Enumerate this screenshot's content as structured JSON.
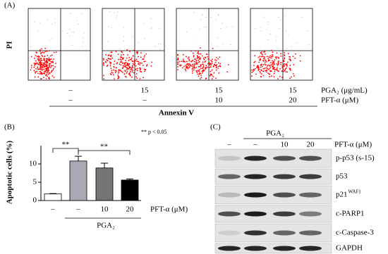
{
  "panel_a": {
    "label": "(A)",
    "y_label": "PI",
    "x_label": "Annexin V",
    "rows": [
      {
        "label": "PGA₂ (μg/mL)",
        "values": [
          "–",
          "15",
          "15",
          "15"
        ]
      },
      {
        "label": "PFT-α (μM)",
        "values": [
          "–",
          "–",
          "10",
          "20"
        ]
      }
    ]
  },
  "chart_data": {
    "type": "bar",
    "panel_label": "(B)",
    "y_label": "Apoptotic cells (%)",
    "categories": [
      "–",
      "–",
      "10",
      "20"
    ],
    "x_label": "PFT-α (μM)",
    "group_label": "PGA₂",
    "series": [
      {
        "values": [
          1.8,
          10.8,
          8.9,
          5.6
        ],
        "errors": [
          0.1,
          1.3,
          1.3,
          0.3
        ],
        "colors": [
          "#ffffff",
          "#a9a9b3",
          "#747474",
          "#000000"
        ]
      }
    ],
    "ylim": [
      0,
      15
    ],
    "yticks": [
      0,
      5,
      10
    ],
    "significance": [
      "**",
      "**"
    ],
    "annotation": "** p < 0.05"
  },
  "panel_c": {
    "label": "(C)",
    "group_label": "PGA₂",
    "columns": [
      "–",
      "–",
      "10",
      "20"
    ],
    "column_label": "PFT-α (μM)",
    "rows": [
      {
        "label": "p-p53 (s-15)"
      },
      {
        "label": "p53"
      },
      {
        "label": "p21",
        "sup": "WAF1"
      },
      {
        "label": "c-PARP1"
      },
      {
        "label": "c-Caspase-3"
      },
      {
        "label": "GAPDH"
      }
    ]
  }
}
